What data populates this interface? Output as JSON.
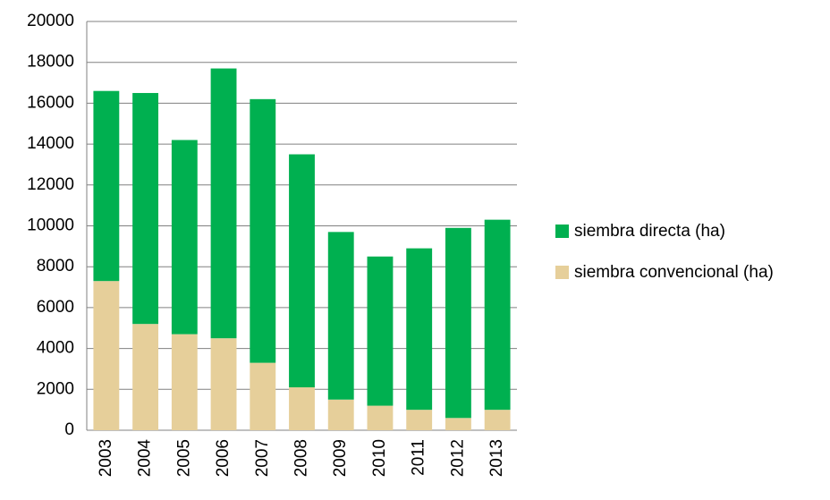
{
  "chart_data": {
    "type": "stacked_bar",
    "categories": [
      "2003",
      "2004",
      "2005",
      "2006",
      "2007",
      "2008",
      "2009",
      "2010",
      "2011",
      "2012",
      "2013"
    ],
    "series": [
      {
        "name": "siembra convencional (ha)",
        "color": "#e6cf9a",
        "values": [
          7300,
          5200,
          4700,
          4500,
          3300,
          2100,
          1500,
          1200,
          1000,
          600,
          1000
        ]
      },
      {
        "name": "siembra directa (ha)",
        "color": "#00b050",
        "values": [
          9300,
          11300,
          9500,
          13200,
          12900,
          11400,
          8200,
          7300,
          7900,
          9300,
          9300
        ]
      }
    ],
    "ylim": [
      0,
      20000
    ],
    "yticks": [
      0,
      2000,
      4000,
      6000,
      8000,
      10000,
      12000,
      14000,
      16000,
      18000,
      20000
    ],
    "grid": true
  }
}
